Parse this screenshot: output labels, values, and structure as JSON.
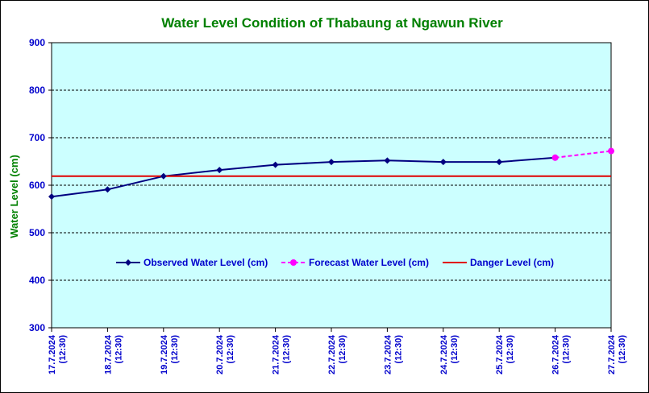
{
  "chart_data": {
    "type": "line",
    "title": "Water Level Condition of Thabaung at Ngawun River",
    "ylabel": "Water Level (cm)",
    "xlabel": "",
    "ylim": [
      300,
      900
    ],
    "yticks": [
      300,
      400,
      500,
      600,
      700,
      800,
      900
    ],
    "grid": "horizontal dashed",
    "categories": [
      [
        "17.7.2024",
        "(12:30)"
      ],
      [
        "18.7.2024",
        "(12:30)"
      ],
      [
        "19.7.2024",
        "(12:30)"
      ],
      [
        "20.7.2024",
        "(12:30)"
      ],
      [
        "21.7.2024",
        "(12:30)"
      ],
      [
        "22.7.2024",
        "(12:30)"
      ],
      [
        "23.7.2024",
        "(12:30)"
      ],
      [
        "24.7.2024",
        "(12:30)"
      ],
      [
        "25.7.2024",
        "(12:30)"
      ],
      [
        "26.7.2024",
        "(12:30)"
      ],
      [
        "27.7.2024",
        "(12:30)"
      ]
    ],
    "series": [
      {
        "name": "Observed Water Level (cm)",
        "color": "#000080",
        "style": "solid",
        "marker": "diamond",
        "values": [
          576,
          591,
          619,
          632,
          643,
          649,
          652,
          649,
          649,
          658,
          null
        ]
      },
      {
        "name": "Forecast Water Level (cm)",
        "color": "#ff00ff",
        "style": "dashed",
        "marker": "circle",
        "values": [
          null,
          null,
          null,
          null,
          null,
          null,
          null,
          null,
          null,
          658,
          672
        ]
      },
      {
        "name": "Danger Level (cm)",
        "color": "#e00000",
        "style": "solid",
        "marker": "none",
        "values": [
          619,
          619,
          619,
          619,
          619,
          619,
          619,
          619,
          619,
          619,
          619
        ]
      }
    ],
    "legend_position": "inside-center",
    "colors": {
      "plot_background": "#ccffff",
      "title": "#008000",
      "axis_text": "#0000cc"
    }
  }
}
